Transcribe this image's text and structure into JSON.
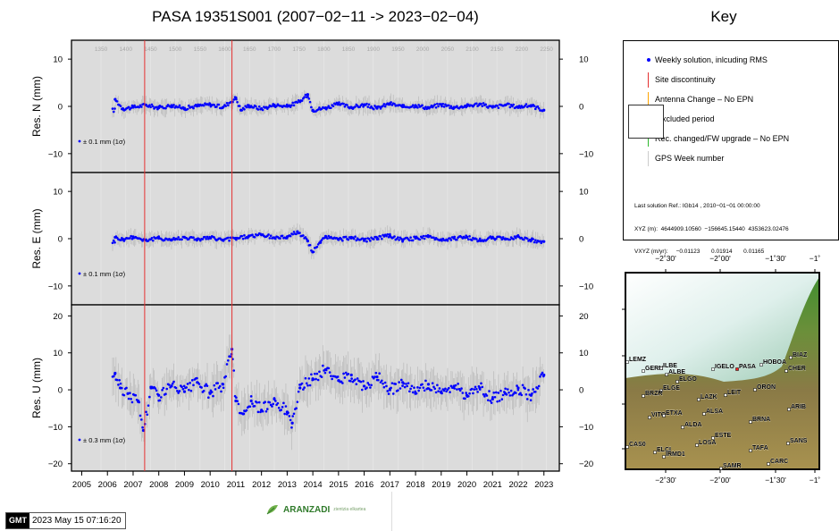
{
  "page": {
    "title": "PASA 19351S001 (2007−02−11 -> 2023−02−04)",
    "key_title": "Key",
    "timestamp": "2023 May 15 07:16:20",
    "gmt_logo": "GMT",
    "logo_brand": "ARANZADI",
    "logo_tagline": "zientzia elkartea"
  },
  "colors": {
    "panel_bg": "#dcdcdc",
    "points": "#0000ff",
    "error_bars": "#b4b4b4",
    "site_discontinuity": "#e53030",
    "antenna_change": "#ffa500",
    "receiver_change": "#2eb82e",
    "gps_week": "#bbbbbb"
  },
  "key": {
    "items": [
      {
        "label": "Weekly solution, inlcuding RMS",
        "symbol": "dot"
      },
      {
        "label": "Site discontinuity",
        "symbol": "red-line"
      },
      {
        "label": "Antenna Change – No EPN",
        "symbol": "orange-line"
      },
      {
        "label": "xcluded period",
        "symbol": "box"
      },
      {
        "label": "Rec. changed/FW upgrade – No EPN",
        "symbol": "green-line"
      },
      {
        "label": "GPS Week number",
        "symbol": "gray-line"
      }
    ],
    "solution_lines": [
      "Last solution Ref.: IGb14 , 2010−01−01 00:00:00",
      "XYZ (m):  4644909.10560  −156645.15440  4353623.02476",
      "VXYZ (m/yr):     −0.01123       0.01914       0.01165"
    ]
  },
  "map": {
    "top_ticks": [
      "−2˚30'",
      "−2˚00'",
      "−1˚30'",
      "−1˚"
    ],
    "bottom_ticks": [
      "−2˚30'",
      "−2˚00'",
      "−1˚30'",
      "−1˚"
    ],
    "stations": [
      "BIAZ",
      "HOBOA",
      "CHER",
      "IGELO",
      "PASA",
      "LEMZ",
      "GERN",
      "ILBE",
      "ALBE",
      "ELGO",
      "ELGE",
      "LEIT",
      "ORON",
      "BRZR",
      "LAZK",
      "ALSA",
      "ARIB",
      "VITO",
      "ETXA",
      "BRNA",
      "ALDA",
      "ESTE",
      "LOSA",
      "TAFA",
      "SANS",
      "CAS0",
      "ELCI",
      "IRMD1",
      "SAMR",
      "CARC"
    ]
  },
  "chart_data": {
    "type": "scatter",
    "x_tick_labels": [
      "2005",
      "2006",
      "2007",
      "2008",
      "2009",
      "2010",
      "2011",
      "2012",
      "2013",
      "2014",
      "2015",
      "2016",
      "2017",
      "2018",
      "2019",
      "2020",
      "2021",
      "2022",
      "2023"
    ],
    "xlim": [
      2004.6,
      2023.6
    ],
    "gps_week_labels": [
      "1350",
      "1400",
      "1450",
      "1500",
      "1550",
      "1600",
      "1650",
      "1700",
      "1750",
      "1800",
      "1850",
      "1900",
      "1950",
      "2000",
      "2050",
      "2100",
      "2150",
      "2200",
      "2250"
    ],
    "site_discontinuities": [
      2007.45,
      2010.85
    ],
    "panels": [
      {
        "ylabel": "Res. N (mm)",
        "ylim": [
          -14,
          14
        ],
        "yticks": [
          -10,
          0,
          10
        ],
        "yticklabels": [
          "−10",
          "0",
          "10"
        ],
        "error_legend": "± 0.1 mm (1σ)",
        "points": [
          [
            2006.3,
            1.5
          ],
          [
            2006.6,
            -0.5
          ],
          [
            2007.0,
            -0.2
          ],
          [
            2007.5,
            0.3
          ],
          [
            2008.0,
            -0.3
          ],
          [
            2008.5,
            0.2
          ],
          [
            2009.0,
            -0.4
          ],
          [
            2009.5,
            0.1
          ],
          [
            2010.0,
            0.4
          ],
          [
            2010.5,
            -0.2
          ],
          [
            2011.0,
            1.8
          ],
          [
            2011.2,
            -0.8
          ],
          [
            2011.5,
            0.2
          ],
          [
            2012.0,
            -0.5
          ],
          [
            2012.5,
            0.3
          ],
          [
            2013.0,
            0.0
          ],
          [
            2013.5,
            1.0
          ],
          [
            2013.8,
            2.5
          ],
          [
            2014.0,
            -0.8
          ],
          [
            2014.5,
            -0.3
          ],
          [
            2015.0,
            0.5
          ],
          [
            2015.5,
            -0.2
          ],
          [
            2016.0,
            0.3
          ],
          [
            2016.5,
            -0.4
          ],
          [
            2017.0,
            0.6
          ],
          [
            2017.5,
            -0.1
          ],
          [
            2018.0,
            0.2
          ],
          [
            2018.5,
            -0.3
          ],
          [
            2019.0,
            0.4
          ],
          [
            2019.5,
            -0.2
          ],
          [
            2020.0,
            0.1
          ],
          [
            2020.5,
            0.5
          ],
          [
            2021.0,
            -0.2
          ],
          [
            2021.5,
            0.3
          ],
          [
            2022.0,
            -0.1
          ],
          [
            2022.5,
            0.2
          ],
          [
            2023.0,
            -0.8
          ]
        ]
      },
      {
        "ylabel": "Res. E (mm)",
        "ylim": [
          -14,
          14
        ],
        "yticks": [
          -10,
          0,
          10
        ],
        "yticklabels": [
          "−10",
          "0",
          "10"
        ],
        "error_legend": "± 0.1 mm (1σ)",
        "points": [
          [
            2006.3,
            0.3
          ],
          [
            2006.6,
            -0.2
          ],
          [
            2007.0,
            0.4
          ],
          [
            2007.5,
            -0.3
          ],
          [
            2008.0,
            0.1
          ],
          [
            2008.5,
            -0.2
          ],
          [
            2009.0,
            0.3
          ],
          [
            2009.5,
            -0.1
          ],
          [
            2010.0,
            0.2
          ],
          [
            2010.5,
            -0.3
          ],
          [
            2011.0,
            0.1
          ],
          [
            2011.5,
            0.5
          ],
          [
            2012.0,
            0.8
          ],
          [
            2012.5,
            0.2
          ],
          [
            2013.0,
            0.4
          ],
          [
            2013.4,
            1.5
          ],
          [
            2013.8,
            -0.5
          ],
          [
            2014.0,
            -2.8
          ],
          [
            2014.3,
            -0.8
          ],
          [
            2014.5,
            0.5
          ],
          [
            2015.0,
            -0.2
          ],
          [
            2015.5,
            0.3
          ],
          [
            2016.0,
            -0.4
          ],
          [
            2016.5,
            0.2
          ],
          [
            2017.0,
            0.6
          ],
          [
            2017.5,
            -0.3
          ],
          [
            2018.0,
            0.1
          ],
          [
            2018.5,
            0.4
          ],
          [
            2019.0,
            -0.2
          ],
          [
            2019.5,
            0.1
          ],
          [
            2020.0,
            0.3
          ],
          [
            2020.5,
            -0.4
          ],
          [
            2021.0,
            0.2
          ],
          [
            2021.5,
            -0.1
          ],
          [
            2022.0,
            0.5
          ],
          [
            2022.5,
            -0.3
          ],
          [
            2023.0,
            -0.6
          ]
        ]
      },
      {
        "ylabel": "Res. U (mm)",
        "ylim": [
          -22,
          23
        ],
        "yticks": [
          -20,
          -10,
          0,
          10,
          20
        ],
        "yticklabels": [
          "−20",
          "−10",
          "0",
          "10",
          "20"
        ],
        "error_legend": "± 0.3 mm (1σ)",
        "points": [
          [
            2006.3,
            4.5
          ],
          [
            2006.5,
            0.5
          ],
          [
            2006.8,
            -1.0
          ],
          [
            2007.2,
            -3.0
          ],
          [
            2007.4,
            -11.0
          ],
          [
            2007.7,
            0.5
          ],
          [
            2008.0,
            -1.5
          ],
          [
            2008.5,
            1.0
          ],
          [
            2009.0,
            -0.5
          ],
          [
            2009.5,
            2.0
          ],
          [
            2010.0,
            -1.0
          ],
          [
            2010.5,
            1.5
          ],
          [
            2010.85,
            11.0
          ],
          [
            2011.0,
            -3.0
          ],
          [
            2011.3,
            -6.5
          ],
          [
            2011.6,
            -3.0
          ],
          [
            2012.0,
            -5.5
          ],
          [
            2012.5,
            -2.5
          ],
          [
            2013.0,
            -6.0
          ],
          [
            2013.2,
            -9.0
          ],
          [
            2013.5,
            0.5
          ],
          [
            2014.0,
            3.0
          ],
          [
            2014.5,
            5.5
          ],
          [
            2015.0,
            2.5
          ],
          [
            2015.5,
            4.0
          ],
          [
            2016.0,
            1.0
          ],
          [
            2016.5,
            3.5
          ],
          [
            2017.0,
            0.0
          ],
          [
            2017.5,
            2.0
          ],
          [
            2018.0,
            -1.0
          ],
          [
            2018.5,
            1.5
          ],
          [
            2019.0,
            -0.5
          ],
          [
            2019.5,
            1.0
          ],
          [
            2020.0,
            -1.5
          ],
          [
            2020.5,
            0.5
          ],
          [
            2021.0,
            -2.5
          ],
          [
            2021.5,
            -1.0
          ],
          [
            2022.0,
            0.5
          ],
          [
            2022.5,
            -1.5
          ],
          [
            2023.0,
            4.0
          ]
        ]
      }
    ]
  }
}
